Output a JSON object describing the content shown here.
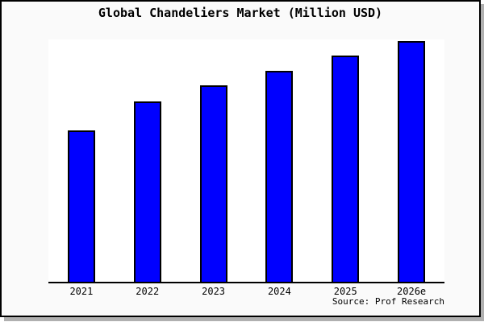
{
  "chart": {
    "title": "Global Chandeliers Market (Million USD)",
    "source": "Source: Prof Research"
  },
  "chart_data": {
    "type": "bar",
    "title": "Global Chandeliers Market (Million USD)",
    "categories": [
      "2021",
      "2022",
      "2023",
      "2024",
      "2025",
      "2026e"
    ],
    "values": [
      188,
      224,
      244,
      262,
      281,
      299
    ],
    "value_note": "no y-axis scale is shown in the image; values are relative units estimated from bar heights",
    "ylim": [
      0,
      301
    ],
    "xlabel": "",
    "ylabel": "",
    "grid": false,
    "legend_position": "none",
    "bar_color": "#0000ff",
    "bar_border_color": "#000000",
    "source": "Source: Prof Research"
  },
  "colors": {
    "canvas_background": "#fafafa",
    "plot_background": "#ffffff",
    "frame_border": "#000000",
    "drop_shadow": "#b0b0b0",
    "text": "#000000"
  }
}
